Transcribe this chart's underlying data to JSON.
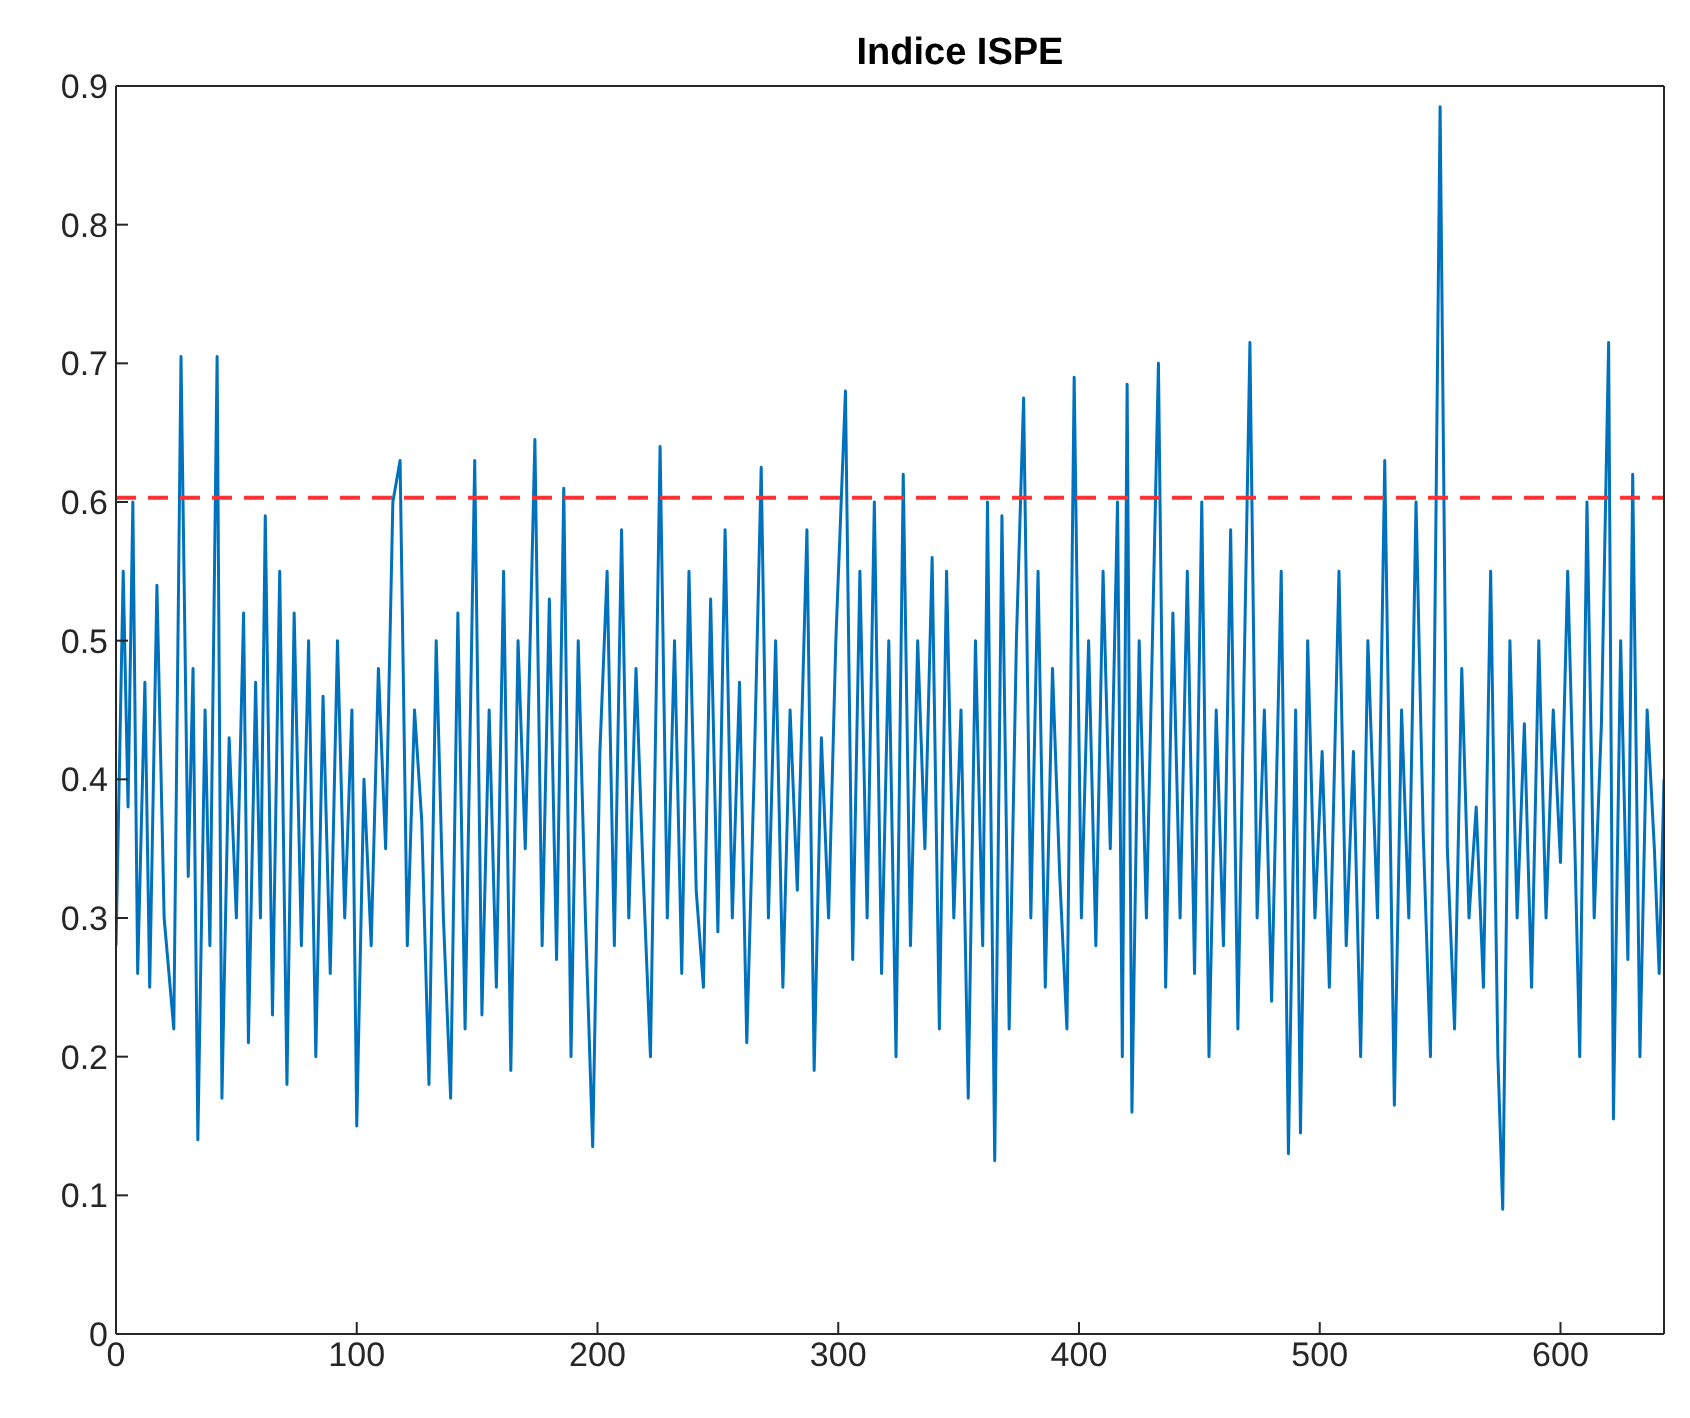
{
  "chart_data": {
    "type": "line",
    "title": "Indice ISPE",
    "x": [
      0,
      3,
      5,
      7,
      9,
      12,
      14,
      17,
      20,
      24,
      27,
      30,
      32,
      34,
      37,
      39,
      42,
      44,
      47,
      50,
      53,
      55,
      58,
      60,
      62,
      65,
      68,
      71,
      74,
      77,
      80,
      83,
      86,
      89,
      92,
      95,
      98,
      100,
      103,
      106,
      109,
      112,
      115,
      118,
      121,
      124,
      127,
      130,
      133,
      136,
      139,
      142,
      145,
      149,
      152,
      155,
      158,
      161,
      164,
      167,
      170,
      174,
      177,
      180,
      183,
      186,
      189,
      192,
      195,
      198,
      201,
      204,
      207,
      210,
      213,
      216,
      219,
      222,
      226,
      229,
      232,
      235,
      238,
      241,
      244,
      247,
      250,
      253,
      256,
      259,
      262,
      265,
      268,
      271,
      274,
      277,
      280,
      283,
      287,
      290,
      293,
      296,
      299,
      303,
      306,
      309,
      312,
      315,
      318,
      321,
      324,
      327,
      330,
      333,
      336,
      339,
      342,
      345,
      348,
      351,
      354,
      357,
      360,
      362,
      365,
      368,
      371,
      374,
      377,
      380,
      383,
      386,
      389,
      392,
      395,
      398,
      401,
      404,
      407,
      410,
      413,
      416,
      418,
      420,
      422,
      425,
      428,
      433,
      436,
      439,
      442,
      445,
      448,
      451,
      454,
      457,
      460,
      463,
      466,
      471,
      474,
      477,
      480,
      484,
      487,
      490,
      492,
      495,
      498,
      501,
      504,
      508,
      511,
      514,
      517,
      520,
      524,
      527,
      531,
      534,
      537,
      540,
      543,
      546,
      550,
      553,
      556,
      559,
      562,
      565,
      568,
      571,
      574,
      576,
      579,
      582,
      585,
      588,
      591,
      594,
      597,
      600,
      603,
      606,
      608,
      611,
      614,
      617,
      620,
      622,
      625,
      628,
      630,
      633,
      636,
      639,
      641,
      643
    ],
    "series": [
      {
        "color": "#0072bd",
        "values": [
          0.28,
          0.55,
          0.38,
          0.6,
          0.26,
          0.47,
          0.25,
          0.54,
          0.3,
          0.22,
          0.705,
          0.33,
          0.48,
          0.14,
          0.45,
          0.28,
          0.705,
          0.17,
          0.43,
          0.3,
          0.52,
          0.21,
          0.47,
          0.3,
          0.59,
          0.23,
          0.55,
          0.18,
          0.52,
          0.28,
          0.5,
          0.2,
          0.46,
          0.26,
          0.5,
          0.3,
          0.45,
          0.15,
          0.4,
          0.28,
          0.48,
          0.35,
          0.6,
          0.63,
          0.28,
          0.45,
          0.37,
          0.18,
          0.5,
          0.3,
          0.17,
          0.52,
          0.22,
          0.63,
          0.23,
          0.45,
          0.25,
          0.55,
          0.19,
          0.5,
          0.35,
          0.645,
          0.28,
          0.53,
          0.27,
          0.61,
          0.2,
          0.5,
          0.3,
          0.135,
          0.42,
          0.55,
          0.28,
          0.58,
          0.3,
          0.48,
          0.33,
          0.2,
          0.64,
          0.3,
          0.5,
          0.26,
          0.55,
          0.32,
          0.25,
          0.53,
          0.29,
          0.58,
          0.3,
          0.47,
          0.21,
          0.4,
          0.625,
          0.3,
          0.5,
          0.25,
          0.45,
          0.32,
          0.58,
          0.19,
          0.43,
          0.3,
          0.5,
          0.68,
          0.27,
          0.55,
          0.3,
          0.6,
          0.26,
          0.5,
          0.2,
          0.62,
          0.28,
          0.5,
          0.35,
          0.56,
          0.22,
          0.55,
          0.3,
          0.45,
          0.17,
          0.5,
          0.28,
          0.6,
          0.125,
          0.59,
          0.22,
          0.5,
          0.675,
          0.3,
          0.55,
          0.25,
          0.48,
          0.33,
          0.22,
          0.69,
          0.3,
          0.5,
          0.28,
          0.55,
          0.35,
          0.6,
          0.2,
          0.685,
          0.16,
          0.5,
          0.3,
          0.7,
          0.25,
          0.52,
          0.3,
          0.55,
          0.26,
          0.6,
          0.2,
          0.45,
          0.28,
          0.58,
          0.22,
          0.715,
          0.3,
          0.45,
          0.24,
          0.55,
          0.13,
          0.45,
          0.145,
          0.5,
          0.3,
          0.42,
          0.25,
          0.55,
          0.28,
          0.42,
          0.2,
          0.5,
          0.3,
          0.63,
          0.165,
          0.45,
          0.3,
          0.6,
          0.36,
          0.2,
          0.885,
          0.35,
          0.22,
          0.48,
          0.3,
          0.38,
          0.25,
          0.55,
          0.2,
          0.09,
          0.5,
          0.3,
          0.44,
          0.25,
          0.5,
          0.3,
          0.45,
          0.34,
          0.55,
          0.35,
          0.2,
          0.6,
          0.3,
          0.44,
          0.715,
          0.155,
          0.5,
          0.27,
          0.62,
          0.2,
          0.45,
          0.35,
          0.26,
          0.4
        ]
      }
    ],
    "xlim": [
      0,
      643
    ],
    "xticks": [
      0,
      100,
      200,
      300,
      400,
      500,
      600
    ],
    "ylim": [
      0,
      0.9
    ],
    "yticks": [
      0,
      0.1,
      0.2,
      0.3,
      0.4,
      0.5,
      0.6,
      0.7,
      0.8,
      0.9
    ],
    "ref_lines": [
      {
        "axis": "y",
        "value": 0.603,
        "color": "#ff3333",
        "line_style": "dashed"
      }
    ],
    "grid": false,
    "legend": false,
    "marker": "none",
    "line_style": "solid"
  }
}
